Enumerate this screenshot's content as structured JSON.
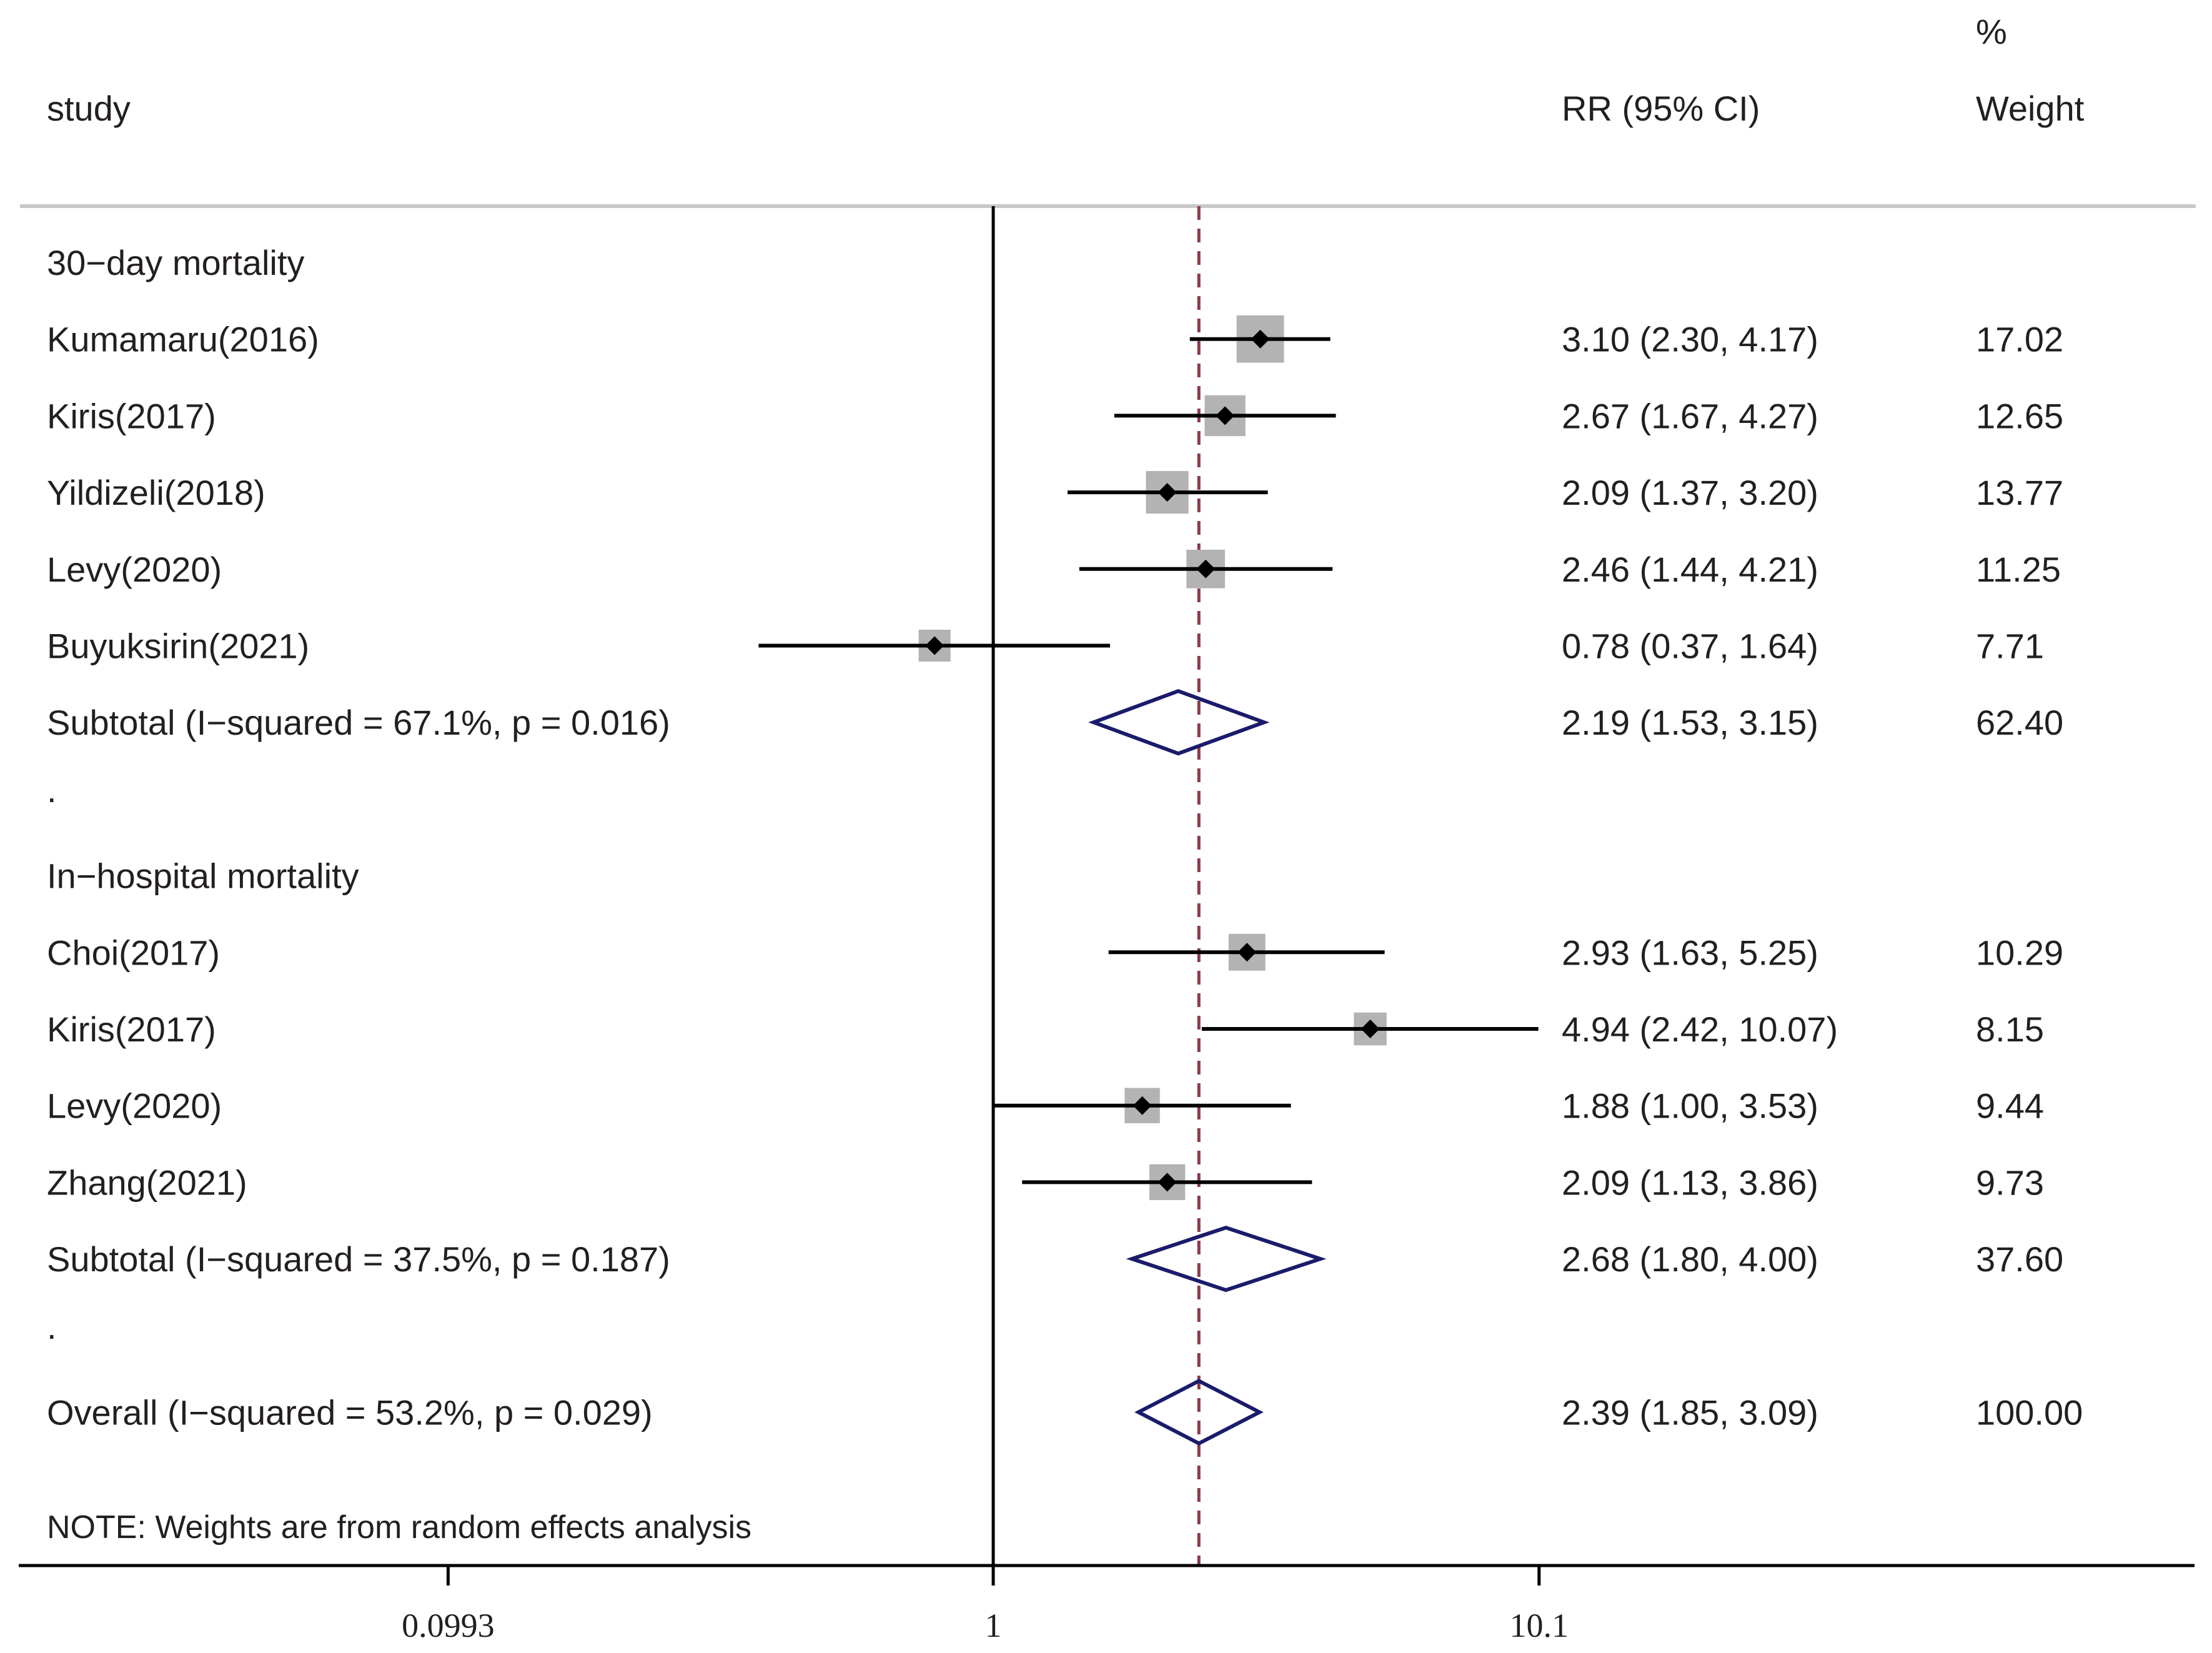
{
  "chart_data": {
    "type": "forest",
    "scale": "log",
    "null_value": 1,
    "overall_effect": 2.39,
    "axis_ticks": [
      "0.0993",
      "1",
      "10.1"
    ],
    "axis_tick_values": [
      0.0993,
      1,
      10.1
    ],
    "headers": {
      "study": "study",
      "effect": "RR (95% CI)",
      "weight_top": "%",
      "weight": "Weight"
    },
    "rows": [
      {
        "kind": "group",
        "label": "30−day mortality"
      },
      {
        "kind": "study",
        "label": "Kumamaru(2016)",
        "rr": 3.1,
        "lo": 2.3,
        "hi": 4.17,
        "ci_text": "3.10 (2.30, 4.17)",
        "weight": "17.02"
      },
      {
        "kind": "study",
        "label": "Kiris(2017)",
        "rr": 2.67,
        "lo": 1.67,
        "hi": 4.27,
        "ci_text": "2.67 (1.67, 4.27)",
        "weight": "12.65"
      },
      {
        "kind": "study",
        "label": "Yildizeli(2018)",
        "rr": 2.09,
        "lo": 1.37,
        "hi": 3.2,
        "ci_text": "2.09 (1.37, 3.20)",
        "weight": "13.77"
      },
      {
        "kind": "study",
        "label": "Levy(2020)",
        "rr": 2.46,
        "lo": 1.44,
        "hi": 4.21,
        "ci_text": "2.46 (1.44, 4.21)",
        "weight": "11.25"
      },
      {
        "kind": "study",
        "label": "Buyuksirin(2021)",
        "rr": 0.78,
        "lo": 0.37,
        "hi": 1.64,
        "ci_text": "0.78 (0.37, 1.64)",
        "weight": "7.71"
      },
      {
        "kind": "subtotal",
        "label": "Subtotal  (I−squared = 67.1%, p = 0.016)",
        "rr": 2.19,
        "lo": 1.53,
        "hi": 3.15,
        "ci_text": "2.19 (1.53, 3.15)",
        "weight": "62.40"
      },
      {
        "kind": "spacer",
        "label": "."
      },
      {
        "kind": "group",
        "label": "In−hospital mortality"
      },
      {
        "kind": "study",
        "label": "Choi(2017)",
        "rr": 2.93,
        "lo": 1.63,
        "hi": 5.25,
        "ci_text": "2.93 (1.63, 5.25)",
        "weight": "10.29"
      },
      {
        "kind": "study",
        "label": "Kiris(2017)",
        "rr": 4.94,
        "lo": 2.42,
        "hi": 10.07,
        "ci_text": "4.94 (2.42, 10.07)",
        "weight": "8.15"
      },
      {
        "kind": "study",
        "label": "Levy(2020)",
        "rr": 1.88,
        "lo": 1.0,
        "hi": 3.53,
        "ci_text": "1.88 (1.00, 3.53)",
        "weight": "9.44"
      },
      {
        "kind": "study",
        "label": "Zhang(2021)",
        "rr": 2.09,
        "lo": 1.13,
        "hi": 3.86,
        "ci_text": "2.09 (1.13, 3.86)",
        "weight": "9.73"
      },
      {
        "kind": "subtotal",
        "label": "Subtotal  (I−squared = 37.5%, p = 0.187)",
        "rr": 2.68,
        "lo": 1.8,
        "hi": 4.0,
        "ci_text": "2.68 (1.80, 4.00)",
        "weight": "37.60"
      },
      {
        "kind": "spacer",
        "label": "."
      },
      {
        "kind": "overall",
        "label": "Overall  (I−squared = 53.2%, p = 0.029)",
        "rr": 2.39,
        "lo": 1.85,
        "hi": 3.09,
        "ci_text": "2.39 (1.85, 3.09)",
        "weight": "100.00"
      }
    ],
    "note": "NOTE: Weights are from random effects analysis",
    "colors": {
      "text": "#231f20",
      "line": "#000000",
      "square": "#b3b3b3",
      "diamond": "#1b1b6b",
      "ref_dashed": "#8b3a4a",
      "rule": "#c8c8c8"
    }
  }
}
